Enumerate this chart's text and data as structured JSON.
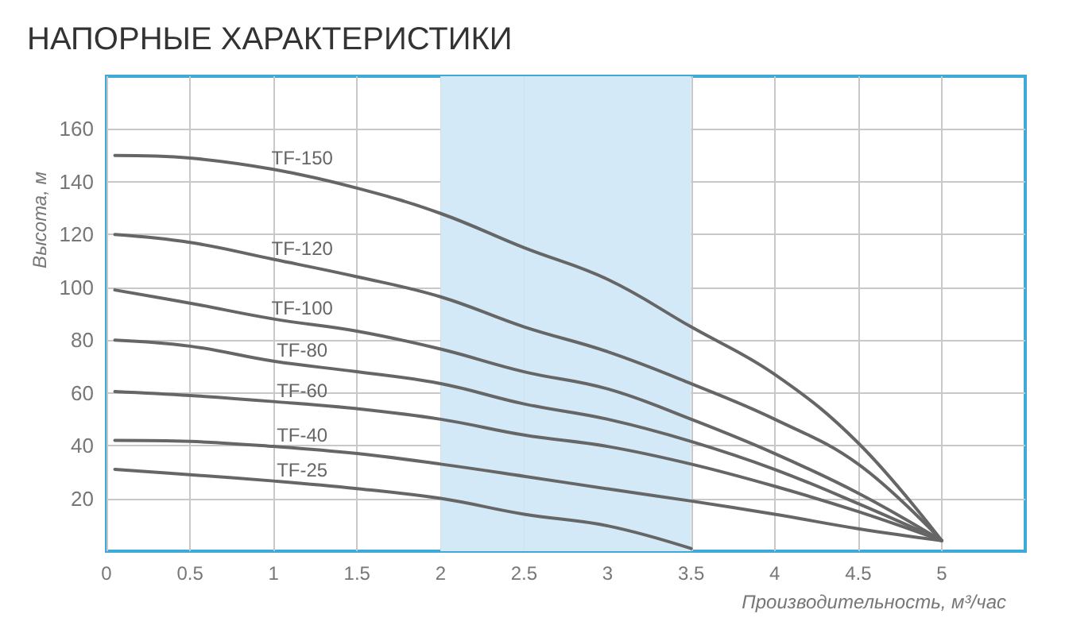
{
  "chart_data": {
    "type": "line",
    "title": "НАПОРНЫЕ ХАРАКТЕРИСТИКИ",
    "xlabel": "Производительность, м³/час",
    "ylabel": "Высота, м",
    "xlim": [
      0,
      5.5
    ],
    "xticks": [
      0,
      0.5,
      1,
      1.5,
      2,
      2.5,
      3,
      3.5,
      4,
      4.5,
      5
    ],
    "ylim": [
      0,
      180
    ],
    "yticks": [
      20,
      40,
      60,
      80,
      100,
      120,
      140,
      160
    ],
    "grid": true,
    "marker": "none",
    "line_style": "solid",
    "bands": [
      {
        "axis": "x",
        "from": 2.5,
        "to": 3.5,
        "color": "#d4e9f8"
      },
      {
        "axis": "x",
        "from": 2,
        "to": 2.5,
        "color": "#d4e9f8"
      }
    ],
    "series": [
      {
        "name": "TF-150",
        "color": "#666666",
        "x": [
          0.05,
          0.5,
          1,
          1.5,
          2,
          2.5,
          3,
          3.5,
          4,
          4.5,
          5
        ],
        "values": [
          150,
          149,
          144.7,
          137.6,
          128,
          115,
          103,
          85,
          67,
          41,
          4
        ]
      },
      {
        "name": "TF-120",
        "color": "#666666",
        "x": [
          0.05,
          0.5,
          1,
          1.5,
          2,
          2.5,
          3,
          3.5,
          4,
          4.5,
          5
        ],
        "values": [
          120,
          117,
          110.6,
          104,
          96.4,
          85,
          75.6,
          63.5,
          50,
          33,
          4
        ]
      },
      {
        "name": "TF-100",
        "color": "#666666",
        "x": [
          0.05,
          0.5,
          1,
          1.5,
          2,
          2.5,
          3,
          3.5,
          4,
          4.5,
          5
        ],
        "values": [
          99,
          94,
          88,
          83.4,
          76.6,
          68,
          61.5,
          50,
          37,
          22,
          4
        ]
      },
      {
        "name": "TF-80",
        "color": "#666666",
        "x": [
          0.05,
          0.5,
          1,
          1.5,
          2,
          2.5,
          3,
          3.5,
          4,
          4.5,
          5
        ],
        "values": [
          80,
          77.7,
          72,
          68,
          63.5,
          55.8,
          50,
          41.6,
          31,
          18,
          4
        ]
      },
      {
        "name": "TF-60",
        "color": "#666666",
        "x": [
          0.05,
          0.5,
          1,
          1.5,
          2,
          2.5,
          3,
          3.5,
          4,
          4.5,
          5
        ],
        "values": [
          60.5,
          59,
          56.7,
          54,
          50,
          44,
          39.7,
          33,
          24.6,
          15,
          4
        ]
      },
      {
        "name": "TF-40",
        "color": "#666666",
        "x": [
          0.05,
          0.5,
          1,
          1.5,
          2,
          2.5,
          3,
          3.5,
          4,
          4.5,
          5
        ],
        "values": [
          42,
          41.6,
          39.7,
          37,
          33,
          28.4,
          23.6,
          19,
          14,
          8.5,
          4
        ]
      },
      {
        "name": "TF-25",
        "color": "#666666",
        "x": [
          0.05,
          0.5,
          1,
          1.5,
          2,
          2.5,
          3,
          3.5
        ],
        "values": [
          31,
          29,
          26.6,
          23.7,
          20,
          14,
          9.6,
          1
        ]
      }
    ]
  }
}
